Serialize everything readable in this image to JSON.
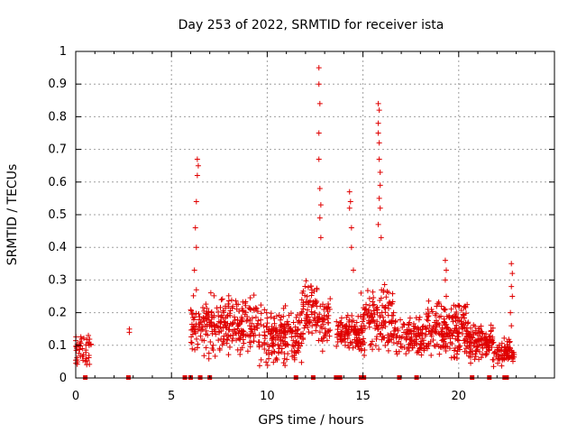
{
  "chart_data": {
    "type": "scatter",
    "title": "Day 253 of 2022, SRMTID for receiver ista",
    "xlabel": "GPS time / hours",
    "ylabel": "SRMTID / TECUs",
    "xlim": [
      0,
      25
    ],
    "ylim": [
      0,
      1
    ],
    "xticks": [
      "0",
      "5",
      "10",
      "15",
      "20"
    ],
    "yticks": [
      "0",
      "0.1",
      "0.2",
      "0.3",
      "0.4",
      "0.5",
      "0.6",
      "0.7",
      "0.8",
      "0.9",
      "1"
    ],
    "grid": true,
    "marker": "plus",
    "color": "#e00000",
    "notable_points": [
      {
        "x": 2.8,
        "y": 0.15
      },
      {
        "x": 2.8,
        "y": 0.14
      },
      {
        "x": 6.35,
        "y": 0.67
      },
      {
        "x": 6.4,
        "y": 0.65
      },
      {
        "x": 6.35,
        "y": 0.62
      },
      {
        "x": 6.3,
        "y": 0.54
      },
      {
        "x": 6.25,
        "y": 0.46
      },
      {
        "x": 6.3,
        "y": 0.4
      },
      {
        "x": 6.2,
        "y": 0.33
      },
      {
        "x": 6.3,
        "y": 0.27
      },
      {
        "x": 12.7,
        "y": 0.95
      },
      {
        "x": 12.7,
        "y": 0.9
      },
      {
        "x": 12.75,
        "y": 0.84
      },
      {
        "x": 12.7,
        "y": 0.75
      },
      {
        "x": 12.7,
        "y": 0.67
      },
      {
        "x": 12.75,
        "y": 0.58
      },
      {
        "x": 12.8,
        "y": 0.53
      },
      {
        "x": 12.75,
        "y": 0.49
      },
      {
        "x": 12.8,
        "y": 0.43
      },
      {
        "x": 14.3,
        "y": 0.57
      },
      {
        "x": 14.35,
        "y": 0.54
      },
      {
        "x": 14.3,
        "y": 0.52
      },
      {
        "x": 14.4,
        "y": 0.46
      },
      {
        "x": 14.4,
        "y": 0.4
      },
      {
        "x": 14.5,
        "y": 0.33
      },
      {
        "x": 15.8,
        "y": 0.84
      },
      {
        "x": 15.85,
        "y": 0.82
      },
      {
        "x": 15.8,
        "y": 0.78
      },
      {
        "x": 15.8,
        "y": 0.75
      },
      {
        "x": 15.85,
        "y": 0.72
      },
      {
        "x": 15.85,
        "y": 0.67
      },
      {
        "x": 15.9,
        "y": 0.63
      },
      {
        "x": 15.9,
        "y": 0.59
      },
      {
        "x": 15.85,
        "y": 0.55
      },
      {
        "x": 15.9,
        "y": 0.52
      },
      {
        "x": 15.8,
        "y": 0.47
      },
      {
        "x": 15.95,
        "y": 0.43
      },
      {
        "x": 19.3,
        "y": 0.36
      },
      {
        "x": 19.35,
        "y": 0.33
      },
      {
        "x": 19.3,
        "y": 0.3
      },
      {
        "x": 19.35,
        "y": 0.25
      },
      {
        "x": 19.3,
        "y": 0.21
      },
      {
        "x": 22.75,
        "y": 0.35
      },
      {
        "x": 22.8,
        "y": 0.32
      },
      {
        "x": 22.75,
        "y": 0.28
      },
      {
        "x": 22.8,
        "y": 0.25
      },
      {
        "x": 22.7,
        "y": 0.2
      },
      {
        "x": 22.75,
        "y": 0.16
      },
      {
        "x": 14.9,
        "y": 0.26
      },
      {
        "x": 16.6,
        "y": 0.2
      }
    ],
    "clusters": [
      {
        "x_range": [
          0.0,
          0.8
        ],
        "y_range": [
          0.03,
          0.14
        ],
        "count": 45
      },
      {
        "x_range": [
          6.0,
          7.2
        ],
        "y_range": [
          0.05,
          0.27
        ],
        "count": 90
      },
      {
        "x_range": [
          7.2,
          9.5
        ],
        "y_range": [
          0.06,
          0.26
        ],
        "count": 180
      },
      {
        "x_range": [
          9.5,
          11.8
        ],
        "y_range": [
          0.03,
          0.23
        ],
        "count": 200
      },
      {
        "x_range": [
          11.8,
          12.6
        ],
        "y_range": [
          0.1,
          0.3
        ],
        "count": 70
      },
      {
        "x_range": [
          12.6,
          13.3
        ],
        "y_range": [
          0.08,
          0.25
        ],
        "count": 50
      },
      {
        "x_range": [
          13.6,
          15.0
        ],
        "y_range": [
          0.08,
          0.2
        ],
        "count": 120
      },
      {
        "x_range": [
          15.0,
          16.6
        ],
        "y_range": [
          0.05,
          0.3
        ],
        "count": 130
      },
      {
        "x_range": [
          16.6,
          18.2
        ],
        "y_range": [
          0.06,
          0.19
        ],
        "count": 120
      },
      {
        "x_range": [
          18.2,
          20.5
        ],
        "y_range": [
          0.05,
          0.25
        ],
        "count": 220
      },
      {
        "x_range": [
          20.5,
          21.8
        ],
        "y_range": [
          0.04,
          0.17
        ],
        "count": 120
      },
      {
        "x_range": [
          21.8,
          22.7
        ],
        "y_range": [
          0.03,
          0.13
        ],
        "count": 70
      },
      {
        "x_range": [
          22.7,
          22.9
        ],
        "y_range": [
          0.05,
          0.09
        ],
        "count": 12
      }
    ],
    "zero_points_x": [
      0.5,
      2.75,
      5.7,
      6.0,
      6.5,
      7.0,
      11.5,
      12.4,
      13.6,
      13.8,
      14.9,
      15.05,
      16.9,
      17.8,
      20.7,
      21.6,
      22.4,
      22.5
    ]
  }
}
